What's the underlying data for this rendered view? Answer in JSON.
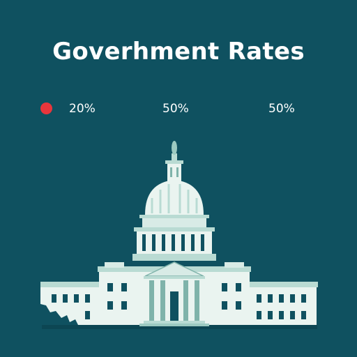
{
  "title": "Goverhment Rates",
  "stats": [
    {
      "label": "20%",
      "marker_color": "#e8363c"
    },
    {
      "label": "50%"
    },
    {
      "label": "50%"
    }
  ],
  "illustration": {
    "icon": "capitol-building-icon",
    "colors": {
      "background": "#0f5160",
      "building_light": "#eaf4f0",
      "building_mid": "#b9dbd3",
      "building_dark": "#7fb3aa"
    }
  }
}
